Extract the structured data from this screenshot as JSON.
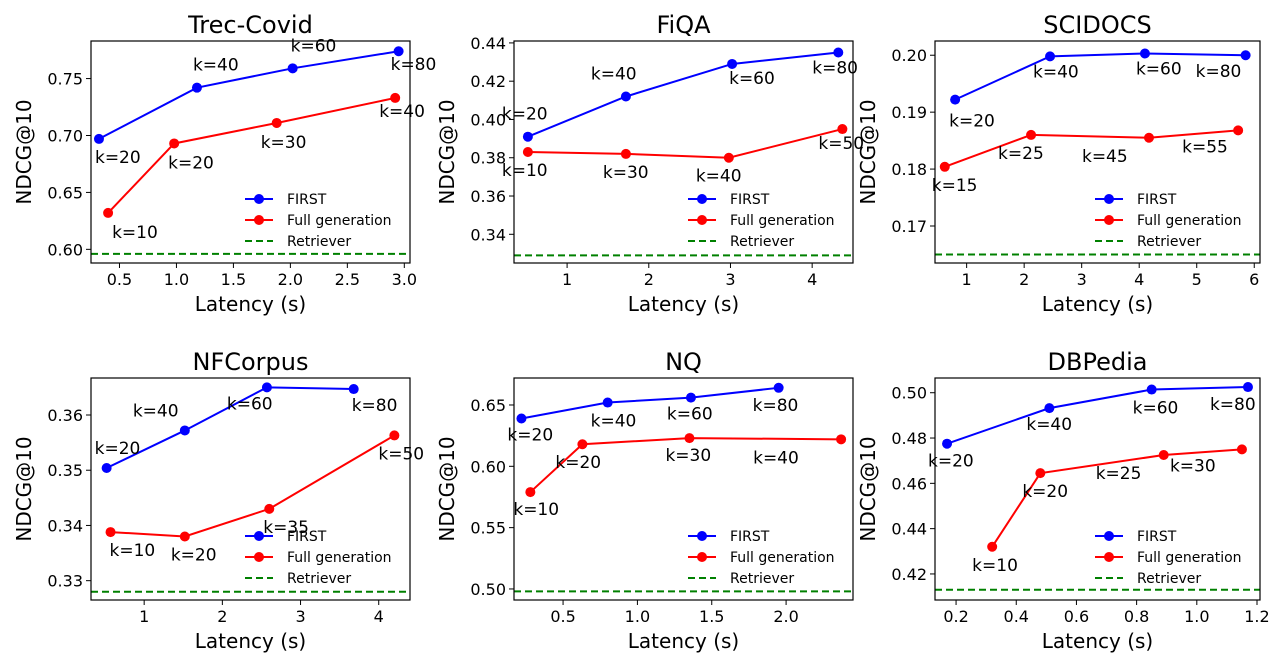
{
  "chart_data": [
    {
      "type": "line",
      "title": "Trec-Covid",
      "xlabel": "Latency (s)",
      "ylabel": "NDCG@10",
      "xlim": [
        0.25,
        3.05
      ],
      "ylim": [
        0.588,
        0.783
      ],
      "xticks": [
        "0.5",
        "1.0",
        "1.5",
        "2.0",
        "2.5",
        "3.0"
      ],
      "yticks": [
        "0.60",
        "0.65",
        "0.70",
        "0.75"
      ],
      "series": [
        {
          "name": "FIRST",
          "color": "#0000ff",
          "x": [
            0.32,
            1.18,
            2.02,
            2.95
          ],
          "y": [
            0.697,
            0.742,
            0.759,
            0.774
          ],
          "labels": [
            "k=20",
            "k=40",
            "k=60",
            "k=80"
          ]
        },
        {
          "name": "Full generation",
          "color": "#ff0000",
          "x": [
            0.4,
            0.98,
            1.88,
            2.92
          ],
          "y": [
            0.632,
            0.693,
            0.711,
            0.733
          ],
          "labels": [
            "k=10",
            "k=20",
            "k=30",
            "k=40"
          ]
        }
      ],
      "retriever": {
        "name": "Retriever",
        "color": "#008000",
        "value": 0.596
      },
      "legend": "lower right"
    },
    {
      "type": "line",
      "title": "FiQA",
      "xlabel": "Latency (s)",
      "ylabel": "NDCG@10",
      "xlim": [
        0.35,
        4.5
      ],
      "ylim": [
        0.325,
        0.441
      ],
      "xticks": [
        "1",
        "2",
        "3",
        "4"
      ],
      "yticks": [
        "0.34",
        "0.36",
        "0.38",
        "0.40",
        "0.42",
        "0.44"
      ],
      "series": [
        {
          "name": "FIRST",
          "color": "#0000ff",
          "x": [
            0.52,
            1.72,
            3.02,
            4.32
          ],
          "y": [
            0.391,
            0.412,
            0.429,
            0.435
          ],
          "labels": [
            "k=20",
            "k=40",
            "k=60",
            "k=80"
          ]
        },
        {
          "name": "Full generation",
          "color": "#ff0000",
          "x": [
            0.52,
            1.72,
            2.98,
            4.37
          ],
          "y": [
            0.383,
            0.382,
            0.38,
            0.395
          ],
          "labels": [
            "k=10",
            "k=30",
            "k=40",
            "k=50"
          ]
        }
      ],
      "retriever": {
        "name": "Retriever",
        "color": "#008000",
        "value": 0.329
      },
      "legend": "lower right"
    },
    {
      "type": "line",
      "title": "SCIDOCS",
      "xlabel": "Latency (s)",
      "ylabel": "NDCG@10",
      "xlim": [
        0.45,
        6.1
      ],
      "ylim": [
        0.1635,
        0.2025
      ],
      "xticks": [
        "1",
        "2",
        "3",
        "4",
        "5",
        "6"
      ],
      "yticks": [
        "0.17",
        "0.18",
        "0.19",
        "0.20"
      ],
      "series": [
        {
          "name": "FIRST",
          "color": "#0000ff",
          "x": [
            0.8,
            2.45,
            4.1,
            5.85
          ],
          "y": [
            0.1922,
            0.1998,
            0.2003,
            0.2
          ],
          "labels": [
            "k=20",
            "k=40",
            "k=60",
            "k=80"
          ]
        },
        {
          "name": "Full generation",
          "color": "#ff0000",
          "x": [
            0.62,
            2.12,
            4.17,
            5.72
          ],
          "y": [
            0.1804,
            0.186,
            0.1855,
            0.1868
          ],
          "labels": [
            "k=15",
            "k=25",
            "k=45",
            "k=55"
          ]
        }
      ],
      "retriever": {
        "name": "Retriever",
        "color": "#008000",
        "value": 0.165
      },
      "legend": "lower right"
    },
    {
      "type": "line",
      "title": "NFCorpus",
      "xlabel": "Latency (s)",
      "ylabel": "NDCG@10",
      "xlim": [
        0.32,
        4.4
      ],
      "ylim": [
        0.3265,
        0.3667
      ],
      "xticks": [
        "1",
        "2",
        "3",
        "4"
      ],
      "yticks": [
        "0.33",
        "0.34",
        "0.35",
        "0.36"
      ],
      "series": [
        {
          "name": "FIRST",
          "color": "#0000ff",
          "x": [
            0.52,
            1.52,
            2.57,
            3.68
          ],
          "y": [
            0.3504,
            0.3572,
            0.365,
            0.3647
          ],
          "labels": [
            "k=20",
            "k=40",
            "k=60",
            "k=80"
          ]
        },
        {
          "name": "Full generation",
          "color": "#ff0000",
          "x": [
            0.57,
            1.52,
            2.6,
            4.2
          ],
          "y": [
            0.3388,
            0.338,
            0.343,
            0.3563
          ],
          "labels": [
            "k=10",
            "k=20",
            "k=35",
            "k=50"
          ]
        }
      ],
      "retriever": {
        "name": "Retriever",
        "color": "#008000",
        "value": 0.328
      },
      "legend": "lower right"
    },
    {
      "type": "line",
      "title": "NQ",
      "xlabel": "Latency (s)",
      "ylabel": "NDCG@10",
      "xlim": [
        0.17,
        2.45
      ],
      "ylim": [
        0.491,
        0.672
      ],
      "xticks": [
        "0.5",
        "1.0",
        "1.5",
        "2.0"
      ],
      "yticks": [
        "0.50",
        "0.55",
        "0.60",
        "0.65"
      ],
      "series": [
        {
          "name": "FIRST",
          "color": "#0000ff",
          "x": [
            0.22,
            0.8,
            1.36,
            1.95
          ],
          "y": [
            0.639,
            0.652,
            0.656,
            0.664
          ],
          "labels": [
            "k=20",
            "k=40",
            "k=60",
            "k=80"
          ]
        },
        {
          "name": "Full generation",
          "color": "#ff0000",
          "x": [
            0.28,
            0.63,
            1.35,
            2.37
          ],
          "y": [
            0.579,
            0.618,
            0.623,
            0.622
          ],
          "labels": [
            "k=10",
            "k=20",
            "k=30",
            "k=40"
          ]
        }
      ],
      "retriever": {
        "name": "Retriever",
        "color": "#008000",
        "value": 0.498
      },
      "legend": "lower right"
    },
    {
      "type": "line",
      "title": "DBPedia",
      "xlabel": "Latency (s)",
      "ylabel": "NDCG@10",
      "xlim": [
        0.13,
        1.21
      ],
      "ylim": [
        0.4085,
        0.5065
      ],
      "xticks": [
        "0.2",
        "0.4",
        "0.6",
        "0.8",
        "1.0",
        "1.2"
      ],
      "yticks": [
        "0.42",
        "0.44",
        "0.46",
        "0.48",
        "0.50"
      ],
      "series": [
        {
          "name": "FIRST",
          "color": "#0000ff",
          "x": [
            0.17,
            0.51,
            0.85,
            1.17
          ],
          "y": [
            0.4775,
            0.4932,
            0.5014,
            0.5025
          ],
          "labels": [
            "k=20",
            "k=40",
            "k=60",
            "k=80"
          ]
        },
        {
          "name": "Full generation",
          "color": "#ff0000",
          "x": [
            0.32,
            0.48,
            0.89,
            1.15
          ],
          "y": [
            0.432,
            0.4645,
            0.4725,
            0.475
          ],
          "labels": [
            "k=10",
            "k=20",
            "k=25",
            "k=30"
          ]
        }
      ],
      "retriever": {
        "name": "Retriever",
        "color": "#008000",
        "value": 0.413
      },
      "legend": "lower right"
    }
  ]
}
